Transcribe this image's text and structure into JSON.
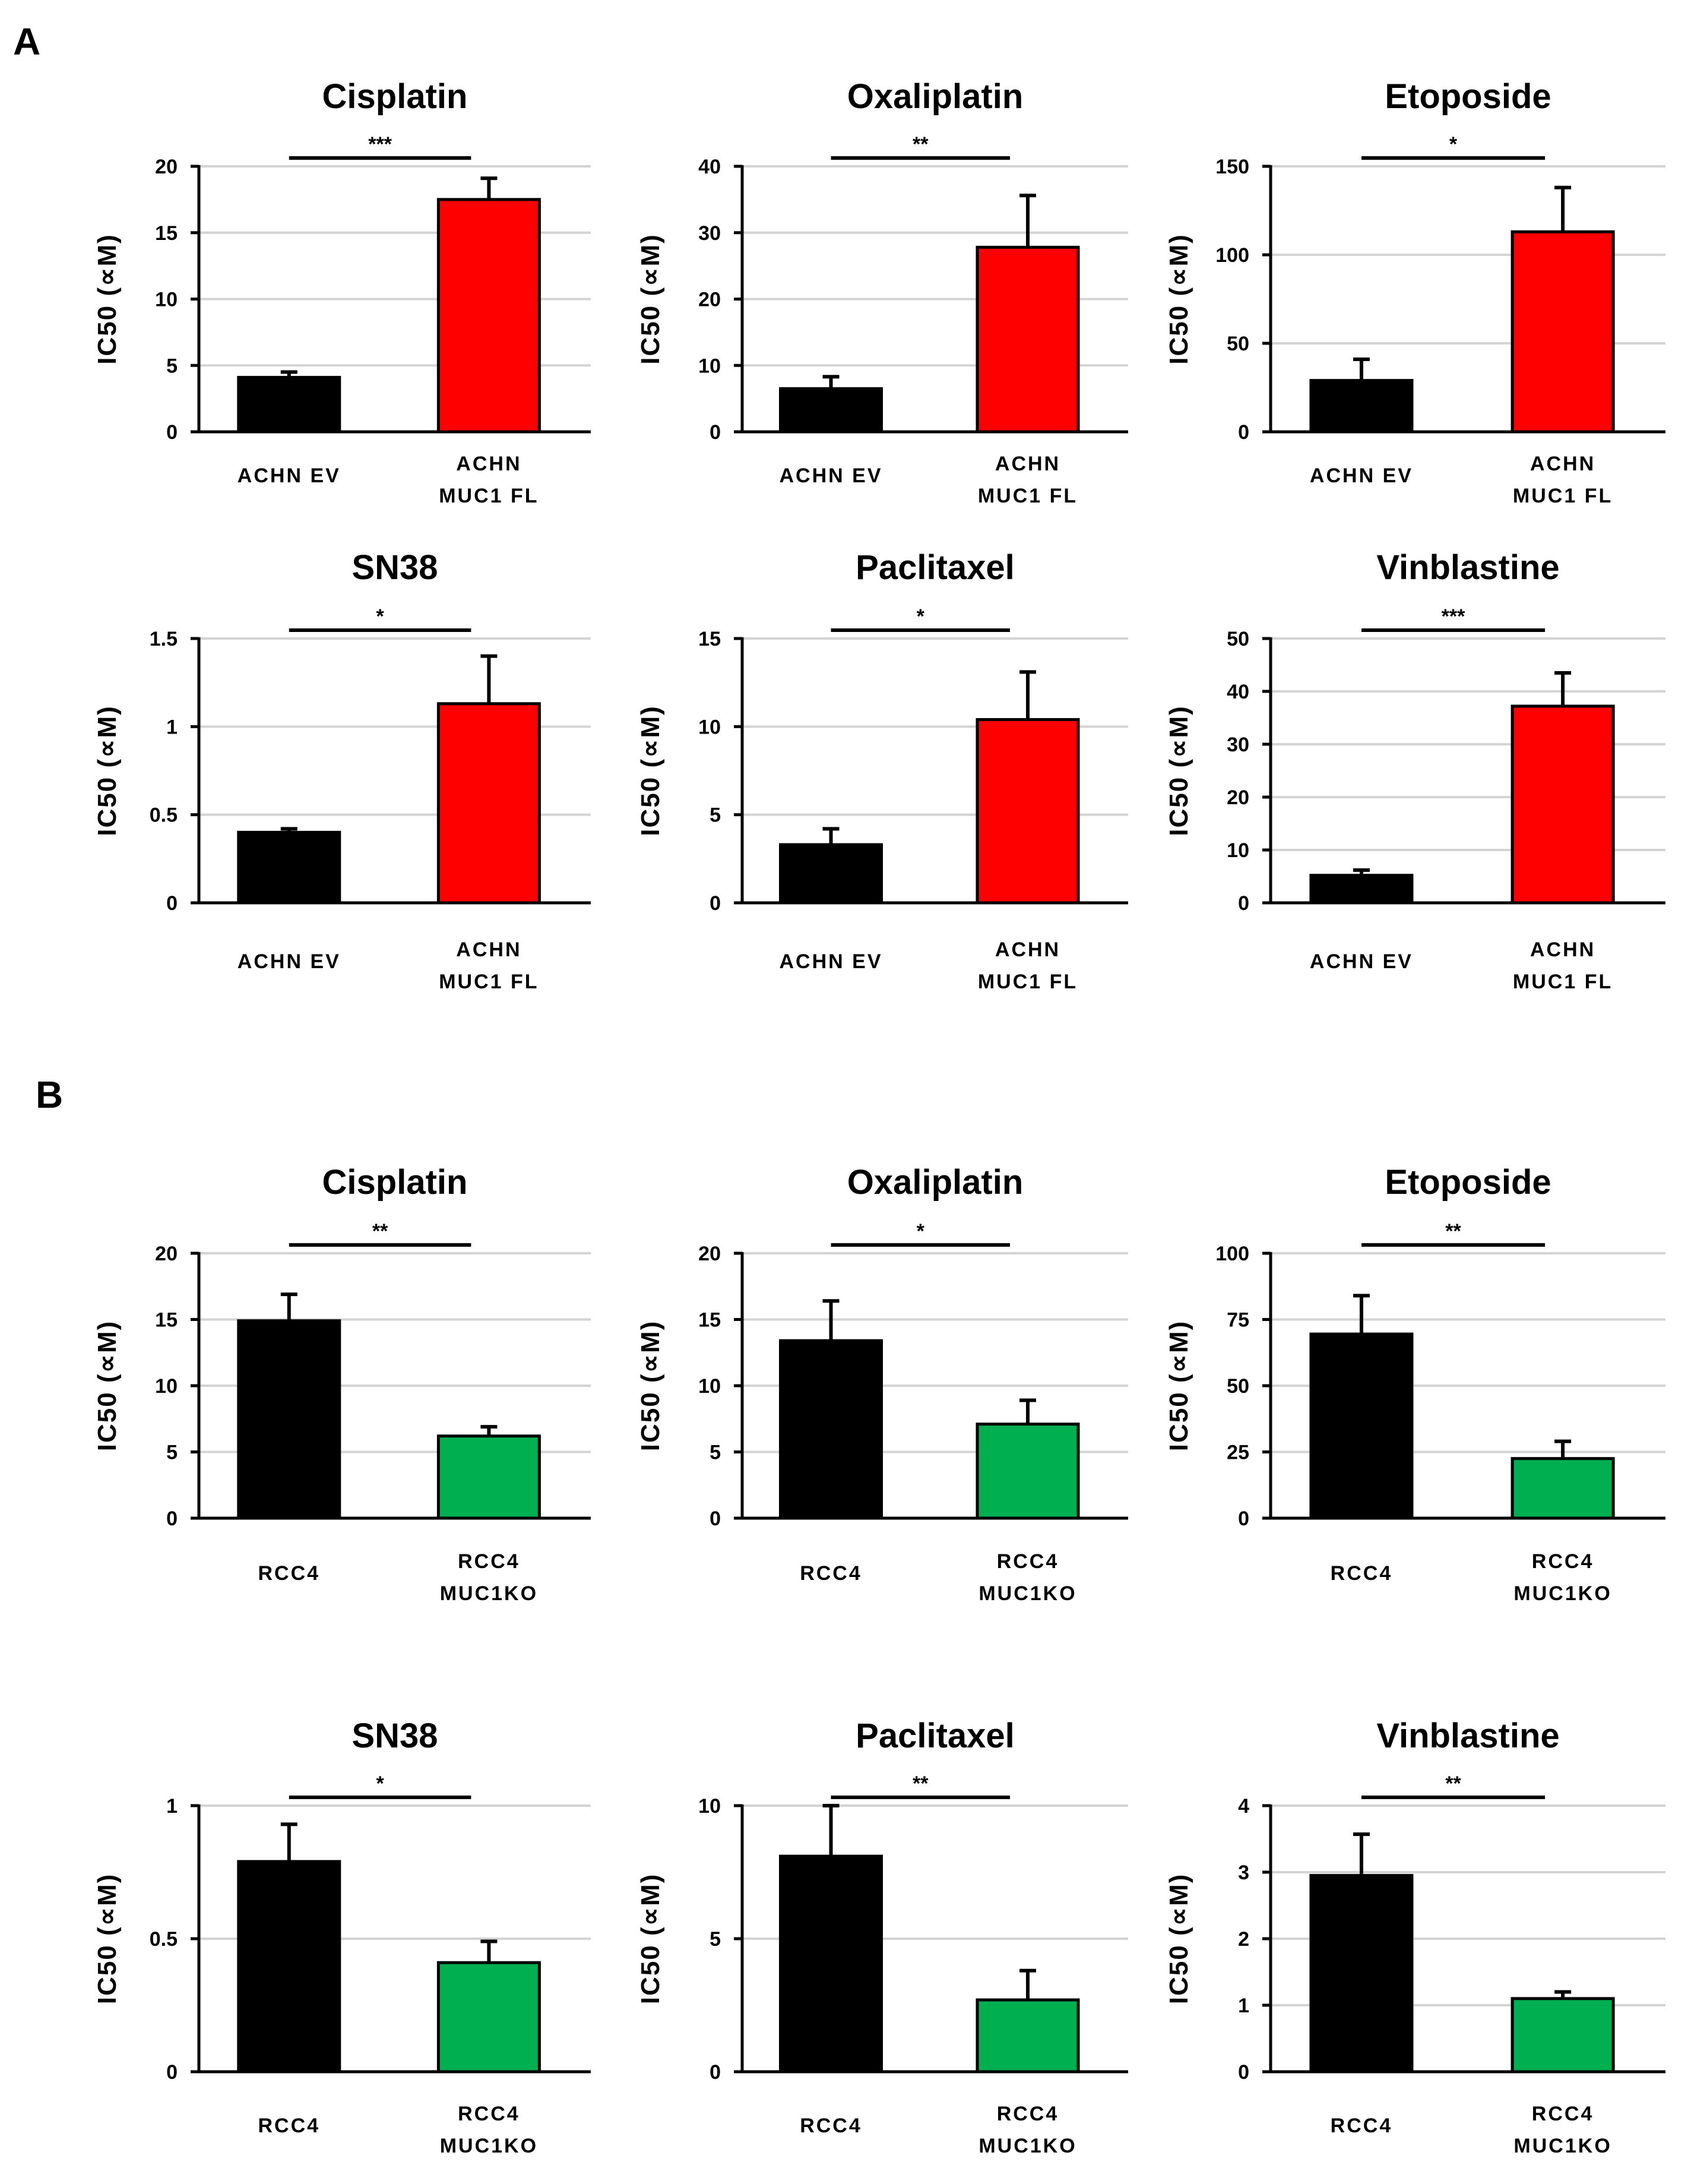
{
  "panel_labels": {
    "a": "A",
    "b": "B"
  },
  "ylabel": "IC50 (∝M)",
  "colors": {
    "control": "#000000",
    "overexpression": "#ff0000",
    "knockout": "#00b050",
    "grid": "#d4d4d4"
  },
  "chart_data": [
    {
      "type": "bar",
      "title": "Cisplatin",
      "ylabel": "IC50 (∝M)",
      "ylim": [
        0,
        20
      ],
      "yticks": [
        0,
        5,
        10,
        15,
        20
      ],
      "categories": [
        [
          "ACHN EV"
        ],
        [
          "ACHN",
          "MUC1 FL"
        ]
      ],
      "values": [
        4.1,
        17.5
      ],
      "errors": [
        0.4,
        1.6
      ],
      "significance": "***"
    },
    {
      "type": "bar",
      "title": "Oxaliplatin",
      "ylabel": "IC50 (∝M)",
      "ylim": [
        0,
        40
      ],
      "yticks": [
        0,
        10,
        20,
        30,
        40
      ],
      "categories": [
        [
          "ACHN EV"
        ],
        [
          "ACHN",
          "MUC1 FL"
        ]
      ],
      "values": [
        6.5,
        27.8
      ],
      "errors": [
        1.8,
        7.8
      ],
      "significance": "**"
    },
    {
      "type": "bar",
      "title": "Etoposide",
      "ylabel": "IC50 (∝M)",
      "ylim": [
        0,
        150
      ],
      "yticks": [
        0,
        50,
        100,
        150
      ],
      "categories": [
        [
          "ACHN EV"
        ],
        [
          "ACHN",
          "MUC1 FL"
        ]
      ],
      "values": [
        29,
        113
      ],
      "errors": [
        12,
        25
      ],
      "significance": "*"
    },
    {
      "type": "bar",
      "title": "SN38",
      "ylabel": "IC50 (∝M)",
      "ylim": [
        0,
        1.5
      ],
      "yticks": [
        0,
        0.5,
        1,
        1.5
      ],
      "categories": [
        [
          "ACHN EV"
        ],
        [
          "ACHN",
          "MUC1 FL"
        ]
      ],
      "values": [
        0.4,
        1.13
      ],
      "errors": [
        0.02,
        0.27
      ],
      "significance": "*"
    },
    {
      "type": "bar",
      "title": "Paclitaxel",
      "ylabel": "IC50 (∝M)",
      "ylim": [
        0,
        15
      ],
      "yticks": [
        0,
        5,
        10,
        15
      ],
      "categories": [
        [
          "ACHN EV"
        ],
        [
          "ACHN",
          "MUC1 FL"
        ]
      ],
      "values": [
        3.3,
        10.4
      ],
      "errors": [
        0.9,
        2.7
      ],
      "significance": "*"
    },
    {
      "type": "bar",
      "title": "Vinblastine",
      "ylabel": "IC50 (∝M)",
      "ylim": [
        0,
        50
      ],
      "yticks": [
        0,
        10,
        20,
        30,
        40,
        50
      ],
      "categories": [
        [
          "ACHN EV"
        ],
        [
          "ACHN",
          "MUC1 FL"
        ]
      ],
      "values": [
        5.2,
        37.2
      ],
      "errors": [
        1.0,
        6.3
      ],
      "significance": "***"
    },
    {
      "type": "bar",
      "title": "Cisplatin",
      "ylabel": "IC50 (∝M)",
      "ylim": [
        0,
        20
      ],
      "yticks": [
        0,
        5,
        10,
        15,
        20
      ],
      "categories": [
        [
          "RCC4"
        ],
        [
          "RCC4",
          "MUC1KO"
        ]
      ],
      "values": [
        14.9,
        6.2
      ],
      "errors": [
        2.0,
        0.7
      ],
      "significance": "**"
    },
    {
      "type": "bar",
      "title": "Oxaliplatin",
      "ylabel": "IC50 (∝M)",
      "ylim": [
        0,
        20
      ],
      "yticks": [
        0,
        5,
        10,
        15,
        20
      ],
      "categories": [
        [
          "RCC4"
        ],
        [
          "RCC4",
          "MUC1KO"
        ]
      ],
      "values": [
        13.4,
        7.1
      ],
      "errors": [
        3.0,
        1.8
      ],
      "significance": "*"
    },
    {
      "type": "bar",
      "title": "Etoposide",
      "ylabel": "IC50 (∝M)",
      "ylim": [
        0,
        100
      ],
      "yticks": [
        0,
        25,
        50,
        75,
        100
      ],
      "categories": [
        [
          "RCC4"
        ],
        [
          "RCC4",
          "MUC1KO"
        ]
      ],
      "values": [
        69.5,
        22.5
      ],
      "errors": [
        14.5,
        6.5
      ],
      "significance": "**"
    },
    {
      "type": "bar",
      "title": "SN38",
      "ylabel": "IC50 (∝M)",
      "ylim": [
        0,
        1
      ],
      "yticks": [
        0,
        0.5,
        1
      ],
      "categories": [
        [
          "RCC4"
        ],
        [
          "RCC4",
          "MUC1KO"
        ]
      ],
      "values": [
        0.79,
        0.41
      ],
      "errors": [
        0.14,
        0.08
      ],
      "significance": "*"
    },
    {
      "type": "bar",
      "title": "Paclitaxel",
      "ylabel": "IC50 (∝M)",
      "ylim": [
        0,
        10
      ],
      "yticks": [
        0,
        5,
        10
      ],
      "categories": [
        [
          "RCC4"
        ],
        [
          "RCC4",
          "MUC1KO"
        ]
      ],
      "values": [
        8.1,
        2.7
      ],
      "errors": [
        1.9,
        1.1
      ],
      "significance": "**"
    },
    {
      "type": "bar",
      "title": "Vinblastine",
      "ylabel": "IC50 (∝M)",
      "ylim": [
        0,
        4
      ],
      "yticks": [
        0,
        1,
        2,
        3,
        4
      ],
      "categories": [
        [
          "RCC4"
        ],
        [
          "RCC4",
          "MUC1KO"
        ]
      ],
      "values": [
        2.95,
        1.1
      ],
      "errors": [
        0.62,
        0.1
      ],
      "significance": "**"
    }
  ]
}
